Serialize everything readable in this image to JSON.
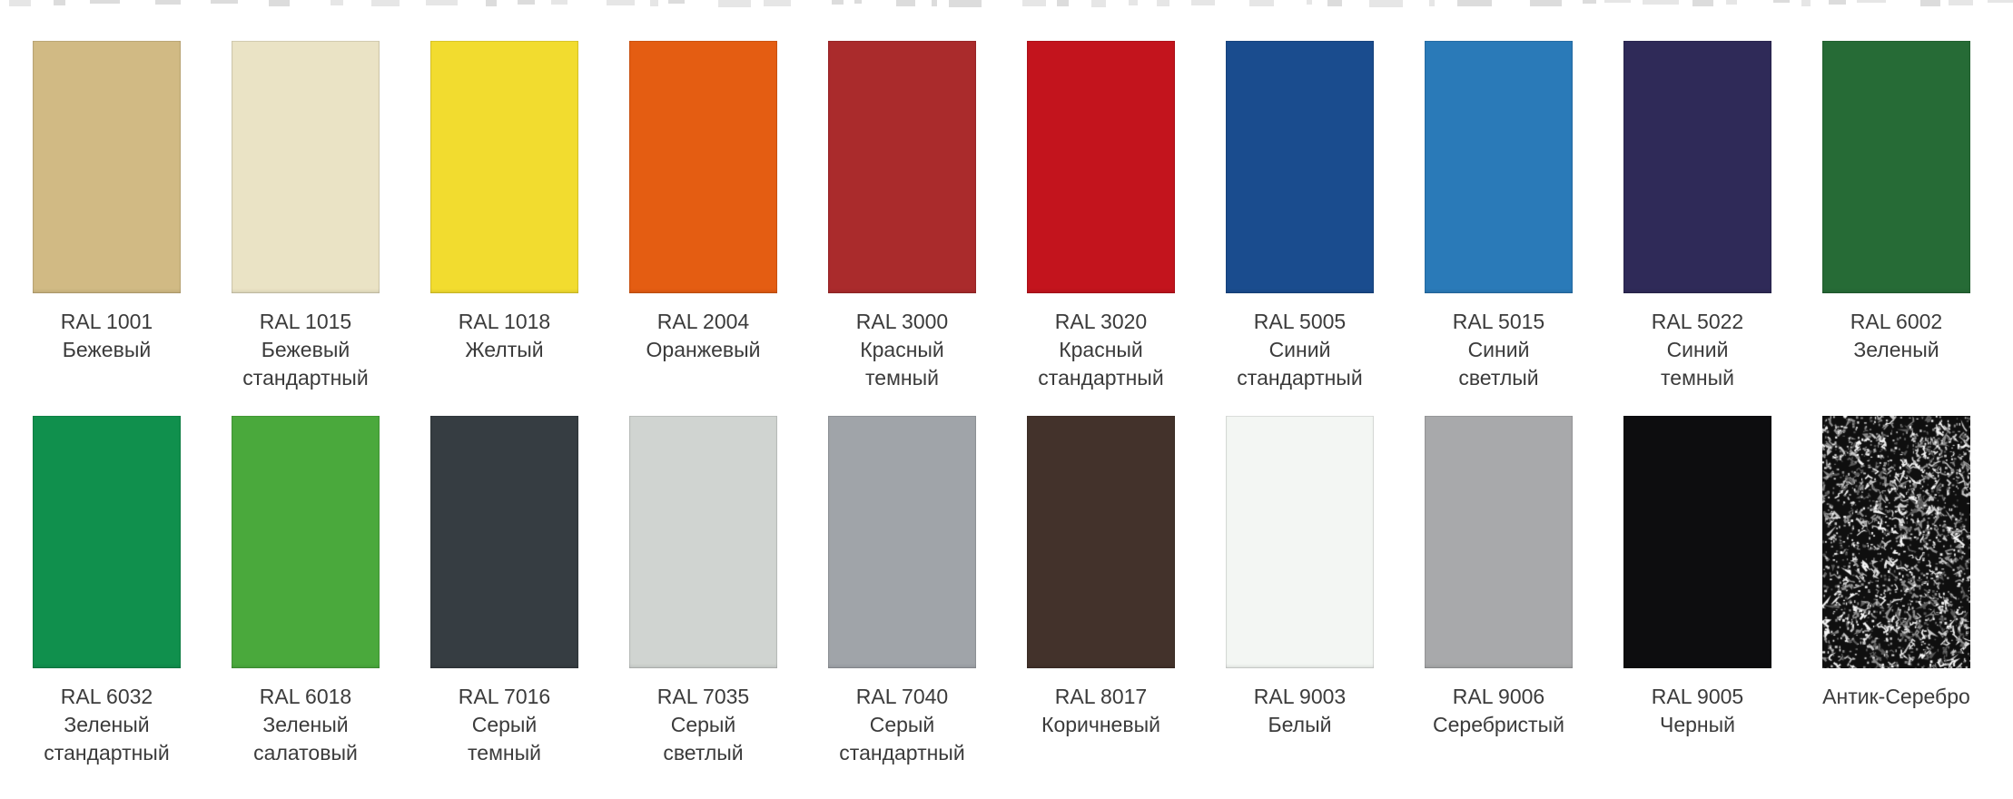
{
  "page": {
    "background": "#ffffff",
    "label_text_color": "#3b3b3b"
  },
  "palette": {
    "rows": [
      {
        "cells": [
          {
            "code": "RAL 1001",
            "name_lines": [
              "Бежевый"
            ],
            "color": "#d1ba84"
          },
          {
            "code": "RAL 1015",
            "name_lines": [
              "Бежевый",
              "стандартный"
            ],
            "color": "#eae3c5"
          },
          {
            "code": "RAL 1018",
            "name_lines": [
              "Желтый"
            ],
            "color": "#f2dc2f"
          },
          {
            "code": "RAL 2004",
            "name_lines": [
              "Оранжевый"
            ],
            "color": "#e45d12"
          },
          {
            "code": "RAL 3000",
            "name_lines": [
              "Красный",
              "темный"
            ],
            "color": "#aa2b2c"
          },
          {
            "code": "RAL 3020",
            "name_lines": [
              "Красный",
              "стандартный"
            ],
            "color": "#c3141d"
          },
          {
            "code": "RAL 5005",
            "name_lines": [
              "Синий",
              "стандартный"
            ],
            "color": "#1a4c8e"
          },
          {
            "code": "RAL 5015",
            "name_lines": [
              "Синий",
              "светлый"
            ],
            "color": "#2a7ab8"
          },
          {
            "code": "RAL 5022",
            "name_lines": [
              "Синий",
              "темный"
            ],
            "color": "#2f2a58"
          },
          {
            "code": "RAL 6002",
            "name_lines": [
              "Зеленый"
            ],
            "color": "#266b36"
          }
        ]
      },
      {
        "cells": [
          {
            "code": "RAL 6032",
            "name_lines": [
              "Зеленый",
              "стандартный"
            ],
            "color": "#10904d"
          },
          {
            "code": "RAL 6018",
            "name_lines": [
              "Зеленый",
              "салатовый"
            ],
            "color": "#4aa93c"
          },
          {
            "code": "RAL 7016",
            "name_lines": [
              "Серый",
              "темный"
            ],
            "color": "#363d42"
          },
          {
            "code": "RAL 7035",
            "name_lines": [
              "Серый",
              "светлый"
            ],
            "color": "#d0d4d1"
          },
          {
            "code": "RAL 7040",
            "name_lines": [
              "Серый",
              "стандартный"
            ],
            "color": "#a0a4a9"
          },
          {
            "code": "RAL 8017",
            "name_lines": [
              "Коричневый"
            ],
            "color": "#43322b"
          },
          {
            "code": "RAL 9003",
            "name_lines": [
              "Белый"
            ],
            "color": "#f3f6f3"
          },
          {
            "code": "RAL 9006",
            "name_lines": [
              "Серебристый"
            ],
            "color": "#a8a9ab"
          },
          {
            "code": "RAL 9005",
            "name_lines": [
              "Черный"
            ],
            "color": "#0d0d0f"
          },
          {
            "code": "Антик-Серебро",
            "name_lines": [],
            "color": "#0f0f0f",
            "texture": "speckle",
            "speckle_colors": [
              "#f5f5f5",
              "#c9c9c9",
              "#8d8d8d",
              "#5a5a5a"
            ]
          }
        ]
      }
    ]
  }
}
